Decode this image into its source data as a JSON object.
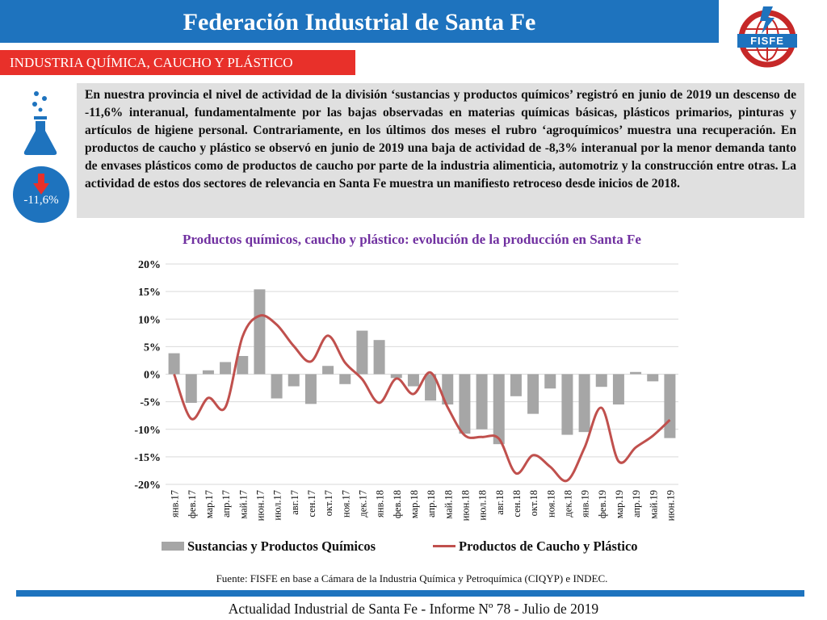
{
  "header": {
    "title": "Federación Industrial de Santa Fe",
    "logo_text": "FISFE"
  },
  "section": {
    "label": "INDUSTRIA QUÍMICA, CAUCHO Y PLÁSTICO"
  },
  "badge": {
    "value": "-11,6%"
  },
  "body_text": "En nuestra provincia el nivel de actividad de la división ‘sustancias y productos químicos’ registró en junio de 2019 un descenso de -11,6% interanual, fundamentalmente por las bajas observadas en materias químicas básicas, plásticos primarios, pinturas y artículos de higiene personal. Contrariamente, en los últimos dos meses el rubro ‘agroquímicos’ muestra una recuperación. En productos de caucho y plástico se observó en junio de 2019 una baja de actividad de -8,3% interanual por la menor demanda tanto de envases plásticos como de productos de caucho por parte de la industria alimenticia, automotriz y la construcción entre otras. La actividad de estos dos sectores de relevancia en Santa Fe muestra un manifiesto retroceso desde inicios de 2018.",
  "chart_data": {
    "type": "bar+line",
    "title": "Productos químicos, caucho y plástico: evolución de la producción en Santa Fe",
    "categories": [
      "янв.17",
      "фев.17",
      "мар.17",
      "апр.17",
      "май.17",
      "июн.17",
      "июл.17",
      "авг.17",
      "сен.17",
      "окт.17",
      "ноя.17",
      "дек.17",
      "янв.18",
      "фев.18",
      "мар.18",
      "апр.18",
      "май.18",
      "июн.18",
      "июл.18",
      "авг.18",
      "сен.18",
      "окт.18",
      "ноя.18",
      "дек.18",
      "янв.19",
      "фев.19",
      "мар.19",
      "апр.19",
      "май.19",
      "июн.19"
    ],
    "y_ticks": [
      "20%",
      "15%",
      "10%",
      "5%",
      "0%",
      "-5%",
      "-10%",
      "-15%",
      "-20%"
    ],
    "ylim": [
      -20,
      20
    ],
    "grid": true,
    "legend_position": "bottom",
    "series": [
      {
        "name": "Sustancias y Productos Químicos",
        "type": "bar",
        "color": "#a6a6a6",
        "values": [
          3.8,
          -5.2,
          0.7,
          2.2,
          3.3,
          15.4,
          -4.4,
          -2.2,
          -5.4,
          1.5,
          -1.8,
          7.9,
          6.2,
          -0.7,
          -2.2,
          -4.8,
          -5.5,
          -10.8,
          -10.0,
          -12.7,
          -4.0,
          -7.2,
          -2.6,
          -11.0,
          -10.5,
          -2.3,
          -5.5,
          0.4,
          -1.3,
          -11.6
        ]
      },
      {
        "name": "Productos de Caucho y Plástico",
        "type": "line",
        "color": "#c0504d",
        "values": [
          0.0,
          -8.1,
          -4.3,
          -6.0,
          6.8,
          10.6,
          9.0,
          5.1,
          2.3,
          7.0,
          2.1,
          -0.9,
          -5.2,
          -0.8,
          -3.6,
          0.3,
          -6.0,
          -11.1,
          -11.4,
          -11.7,
          -18.0,
          -14.7,
          -16.8,
          -19.3,
          -13.4,
          -6.1,
          -15.8,
          -13.3,
          -11.2,
          -8.3
        ]
      }
    ]
  },
  "source": "Fuente: FISFE en base a Cámara de la Industria Química y Petroquímica (CIQYP) e INDEC.",
  "footer": "Actualidad Industrial de Santa Fe - Informe Nº 78 - Julio de 2019"
}
